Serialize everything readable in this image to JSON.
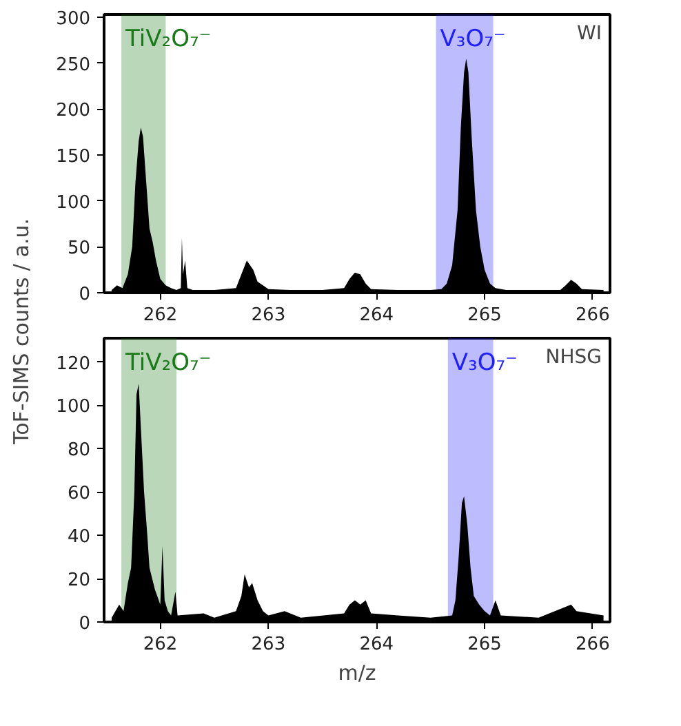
{
  "chart_data": [
    {
      "type": "area",
      "ylabel": "ToF-SIMS counts / a.u.",
      "annotations": [
        "WI"
      ],
      "xlim": [
        261.48,
        266.16
      ],
      "ylim": [
        0,
        303
      ],
      "xticks": [
        262,
        263,
        264,
        265,
        266
      ],
      "yticks": [
        0,
        50,
        100,
        150,
        200,
        250,
        300
      ],
      "grid": false,
      "bands": [
        {
          "axis": "x",
          "from": 261.64,
          "to": 262.05,
          "label": "TiV₂O₇⁻",
          "color": "#1a7a1a"
        },
        {
          "axis": "x",
          "from": 264.55,
          "to": 265.08,
          "label": "V₃O₇⁻",
          "color": "#2020ff"
        }
      ],
      "series": [
        {
          "color": "#000000",
          "x": [
            261.55,
            261.6,
            261.65,
            261.7,
            261.74,
            261.77,
            261.8,
            261.82,
            261.84,
            261.87,
            261.9,
            261.93,
            261.96,
            262.0,
            262.05,
            262.1,
            262.15,
            262.19,
            262.2,
            262.21,
            262.23,
            262.25,
            262.3,
            262.5,
            262.7,
            262.75,
            262.8,
            262.83,
            262.86,
            262.9,
            262.95,
            263.0,
            263.2,
            263.5,
            263.7,
            263.75,
            263.8,
            263.85,
            263.9,
            263.95,
            264.2,
            264.5,
            264.6,
            264.65,
            264.7,
            264.75,
            264.78,
            264.81,
            264.83,
            264.85,
            264.88,
            264.92,
            264.96,
            265.0,
            265.05,
            265.1,
            265.2,
            265.5,
            265.7,
            265.75,
            265.8,
            265.85,
            265.9,
            266.1
          ],
          "values": [
            3,
            8,
            5,
            20,
            50,
            120,
            165,
            180,
            170,
            120,
            70,
            55,
            35,
            15,
            8,
            5,
            3,
            5,
            60,
            20,
            35,
            5,
            3,
            3,
            5,
            20,
            35,
            30,
            25,
            12,
            8,
            4,
            3,
            3,
            5,
            15,
            22,
            20,
            10,
            4,
            3,
            3,
            4,
            10,
            30,
            90,
            180,
            240,
            255,
            240,
            170,
            90,
            50,
            25,
            10,
            5,
            3,
            3,
            3,
            8,
            14,
            10,
            4,
            3
          ]
        }
      ]
    },
    {
      "type": "area",
      "xlabel": "m/z",
      "annotations": [
        "NHSG"
      ],
      "xlim": [
        261.48,
        266.16
      ],
      "ylim": [
        0,
        131
      ],
      "xticks": [
        262,
        263,
        264,
        265,
        266
      ],
      "yticks": [
        0,
        20,
        40,
        60,
        80,
        100,
        120
      ],
      "grid": false,
      "bands": [
        {
          "axis": "x",
          "from": 261.64,
          "to": 262.15,
          "label": "TiV₂O₇⁻",
          "color": "#1a7a1a"
        },
        {
          "axis": "x",
          "from": 264.66,
          "to": 265.08,
          "label": "V₃O₇⁻",
          "color": "#2020ff"
        }
      ],
      "series": [
        {
          "color": "#000000",
          "x": [
            261.55,
            261.62,
            261.66,
            261.7,
            261.73,
            261.76,
            261.78,
            261.8,
            261.82,
            261.85,
            261.88,
            261.9,
            261.95,
            262.0,
            262.02,
            262.04,
            262.07,
            262.1,
            262.14,
            262.16,
            262.4,
            262.5,
            262.7,
            262.75,
            262.78,
            262.82,
            262.85,
            262.9,
            262.95,
            263.0,
            263.15,
            263.3,
            263.7,
            263.75,
            263.8,
            263.85,
            263.9,
            263.95,
            264.2,
            264.5,
            264.7,
            264.73,
            264.76,
            264.79,
            264.81,
            264.84,
            264.87,
            264.9,
            264.95,
            265.0,
            265.05,
            265.1,
            265.15,
            265.5,
            265.8,
            265.85,
            266.1
          ],
          "values": [
            2,
            8,
            5,
            18,
            25,
            60,
            105,
            110,
            90,
            60,
            40,
            25,
            15,
            8,
            35,
            10,
            5,
            3,
            14,
            3,
            4,
            2,
            5,
            12,
            22,
            16,
            18,
            10,
            5,
            3,
            5,
            2,
            4,
            8,
            10,
            8,
            10,
            4,
            3,
            2,
            3,
            10,
            30,
            55,
            58,
            45,
            25,
            12,
            8,
            5,
            3,
            10,
            3,
            2,
            8,
            5,
            3
          ]
        }
      ]
    }
  ]
}
